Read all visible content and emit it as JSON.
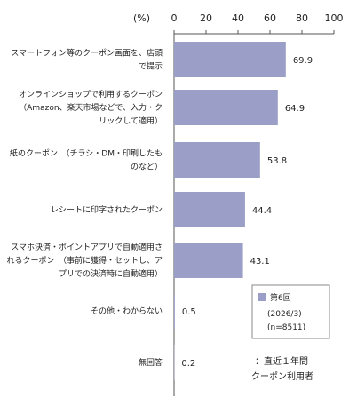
{
  "chart_data": {
    "type": "bar",
    "orientation": "horizontal",
    "unit_label": "(%)",
    "xlim": [
      0,
      100
    ],
    "ticks": [
      "0",
      "20",
      "40",
      "60",
      "80",
      "100"
    ],
    "tick_values": [
      0,
      20,
      40,
      60,
      80,
      100
    ],
    "grid": false,
    "bar_color": "#9b9fc7",
    "categories": [
      [
        "スマートフォン等のクーポン画面を、店頭",
        "で提示"
      ],
      [
        "オンラインショップで利用するクーポン",
        "（Amazon、楽天市場などで、入力・ク",
        "リックして適用）"
      ],
      [
        "紙のクーポン　（チラシ・DM・印刷したも",
        "のなど）"
      ],
      [
        "レシートに印字されたクーポン"
      ],
      [
        "スマホ決済・ポイントアプリで自動適用さ",
        "れるクーポン　（事前に獲得・セットし、ア",
        "プリでの決済時に自動適用）"
      ],
      [
        "その他・わからない"
      ],
      [
        "無回答"
      ]
    ],
    "values": [
      69.9,
      64.9,
      53.8,
      44.4,
      43.1,
      0.5,
      0.2
    ],
    "value_labels": [
      "69.9",
      "64.9",
      "53.8",
      "44.4",
      "43.1",
      "0.5",
      "0.2"
    ],
    "legend": {
      "placement": "bottom-right",
      "series_name": "第6回",
      "lines": [
        "(2026/3)",
        "(n=8511)"
      ]
    },
    "note": [
      "：直近１年間",
      "クーポン利用者"
    ]
  }
}
